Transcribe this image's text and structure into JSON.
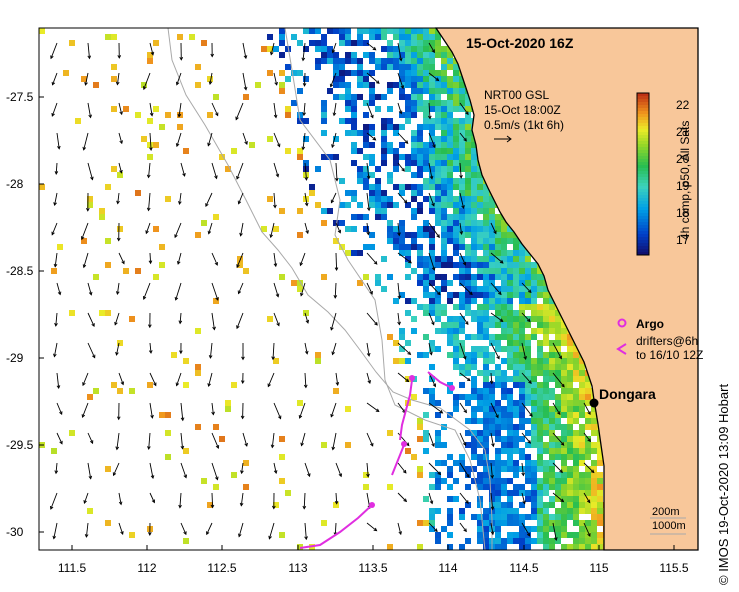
{
  "title": "15-Oct-2020 16Z",
  "source": {
    "line1": "NRT00 GSL",
    "line2": "15-Oct 18:00Z",
    "line3": "0.5m/s (1kt 6h)"
  },
  "colorbar": {
    "label": "4h comp, p50, All Sats",
    "ticks": [
      "22",
      "21",
      "20",
      "19",
      "18",
      "17"
    ],
    "range": [
      16.5,
      22.5
    ]
  },
  "legend": {
    "argo_label": "Argo",
    "drifters_line1": "drifters@6h",
    "drifters_line2": "to 16/10 12Z"
  },
  "place": {
    "name": "Dongara",
    "lon": 114.94,
    "lat": -29.25
  },
  "scale": {
    "line1": "200m",
    "line2": "1000m"
  },
  "credit": "© IMOS 19-Oct-2020 13:09 Hobart",
  "axes": {
    "lat_ticks": [
      "-27.5",
      "-28",
      "-28.5",
      "-29",
      "-29.5",
      "-30"
    ],
    "lon_ticks": [
      "111.5",
      "112",
      "112.5",
      "113",
      "113.5",
      "114",
      "114.5",
      "115",
      "115.5"
    ],
    "lon_range": [
      111.3,
      115.6
    ],
    "lat_range": [
      -30.1,
      -27.05
    ]
  },
  "colors": {
    "land": "#f8c79a",
    "coast": "#000000",
    "isobath": "#a9a9a9",
    "drifter": "#e02ee0",
    "arrow": "#000000"
  }
}
